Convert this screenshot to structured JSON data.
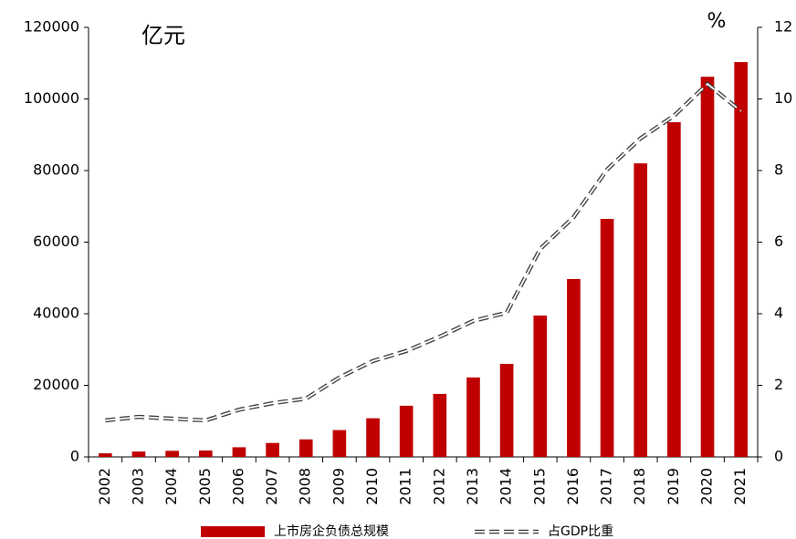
{
  "chart_data": {
    "type": "bar_line",
    "unit_left": "亿元",
    "unit_right": "%",
    "categories": [
      "2002",
      "2003",
      "2004",
      "2005",
      "2006",
      "2007",
      "2008",
      "2009",
      "2010",
      "2011",
      "2012",
      "2013",
      "2014",
      "2015",
      "2016",
      "2017",
      "2018",
      "2019",
      "2020",
      "2021"
    ],
    "series": [
      {
        "name": "上市房企负债总规模",
        "type": "bar",
        "color": "#c00000",
        "values": [
          1000,
          1500,
          1700,
          1800,
          2700,
          3900,
          4900,
          7500,
          10800,
          14300,
          17600,
          22200,
          26000,
          39500,
          49700,
          66500,
          82000,
          93500,
          106200,
          110300
        ]
      },
      {
        "name": "占GDP比重",
        "type": "line",
        "axis": "y2",
        "color": "#404040",
        "values": [
          1.02,
          1.12,
          1.07,
          1.02,
          1.32,
          1.5,
          1.63,
          2.22,
          2.68,
          2.96,
          3.36,
          3.8,
          4.03,
          5.81,
          6.7,
          8.03,
          8.9,
          9.53,
          10.42,
          9.66
        ]
      }
    ],
    "ylim": [
      0,
      120000
    ],
    "yticks": [
      0,
      20000,
      40000,
      60000,
      80000,
      100000,
      120000
    ],
    "y2lim": [
      0,
      12
    ],
    "y2ticks": [
      0,
      2,
      4,
      6,
      8,
      10,
      12
    ]
  }
}
